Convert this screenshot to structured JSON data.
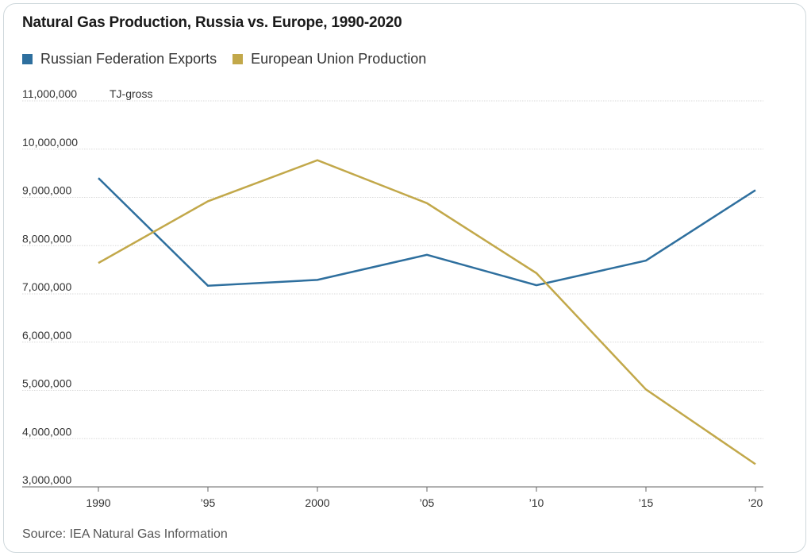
{
  "title": "Natural Gas Production, Russia vs. Europe, 1990-2020",
  "source": "Source: IEA Natural Gas Information",
  "chart_data": {
    "type": "line",
    "title": "Natural Gas Production, Russia vs. Europe, 1990-2020",
    "unit_label": "TJ-gross",
    "x": [
      1990,
      1995,
      2000,
      2005,
      2010,
      2015,
      2020
    ],
    "x_tick_labels": [
      "1990",
      "’95",
      "2000",
      "’05",
      "’10",
      "’15",
      "’20"
    ],
    "y_ticks": [
      3000000,
      4000000,
      5000000,
      6000000,
      7000000,
      8000000,
      9000000,
      10000000,
      11000000
    ],
    "y_tick_labels": [
      "3,000,000",
      "4,000,000",
      "5,000,000",
      "6,000,000",
      "7,000,000",
      "8,000,000",
      "9,000,000",
      "10,000,000",
      "11,000,000"
    ],
    "ylim": [
      3000000,
      11000000
    ],
    "grid": true,
    "legend_position": "top-left",
    "series": [
      {
        "name": "Russian Federation Exports",
        "color": "#2e6f9e",
        "values": [
          9400000,
          7170000,
          7290000,
          7810000,
          7180000,
          7690000,
          9150000
        ]
      },
      {
        "name": "European Union Production",
        "color": "#c2a84a",
        "values": [
          7640000,
          8920000,
          9770000,
          8880000,
          7430000,
          5020000,
          3470000
        ]
      }
    ]
  }
}
